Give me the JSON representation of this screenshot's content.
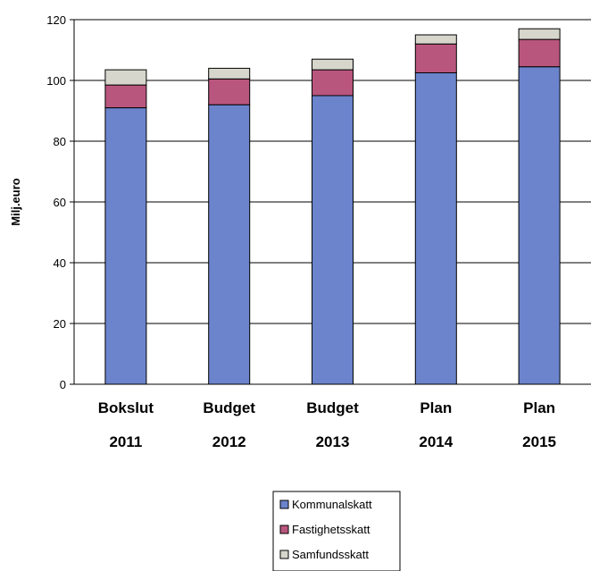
{
  "chart_data": {
    "type": "bar",
    "stacked": true,
    "title": "",
    "xlabel": "",
    "ylabel": "Milj.euro",
    "ylim": [
      0,
      120
    ],
    "yticks": [
      0,
      20,
      40,
      60,
      80,
      100,
      120
    ],
    "grid": true,
    "legend_position": "bottom-center",
    "categories": [
      {
        "line1": "Bokslut",
        "line2": "2011"
      },
      {
        "line1": "Budget",
        "line2": "2012"
      },
      {
        "line1": "Budget",
        "line2": "2013"
      },
      {
        "line1": "Plan",
        "line2": "2014"
      },
      {
        "line1": "Plan",
        "line2": "2015"
      }
    ],
    "series": [
      {
        "name": "Kommunalskatt",
        "color": "#6b84cc",
        "values": [
          91,
          92,
          95,
          102.5,
          104.5
        ]
      },
      {
        "name": "Fastighetsskatt",
        "color": "#b9567e",
        "values": [
          7.5,
          8.5,
          8.5,
          9.5,
          9
        ]
      },
      {
        "name": "Samfundsskatt",
        "color": "#d6d6cc",
        "values": [
          5,
          3.5,
          3.5,
          3,
          3.5
        ]
      }
    ]
  }
}
